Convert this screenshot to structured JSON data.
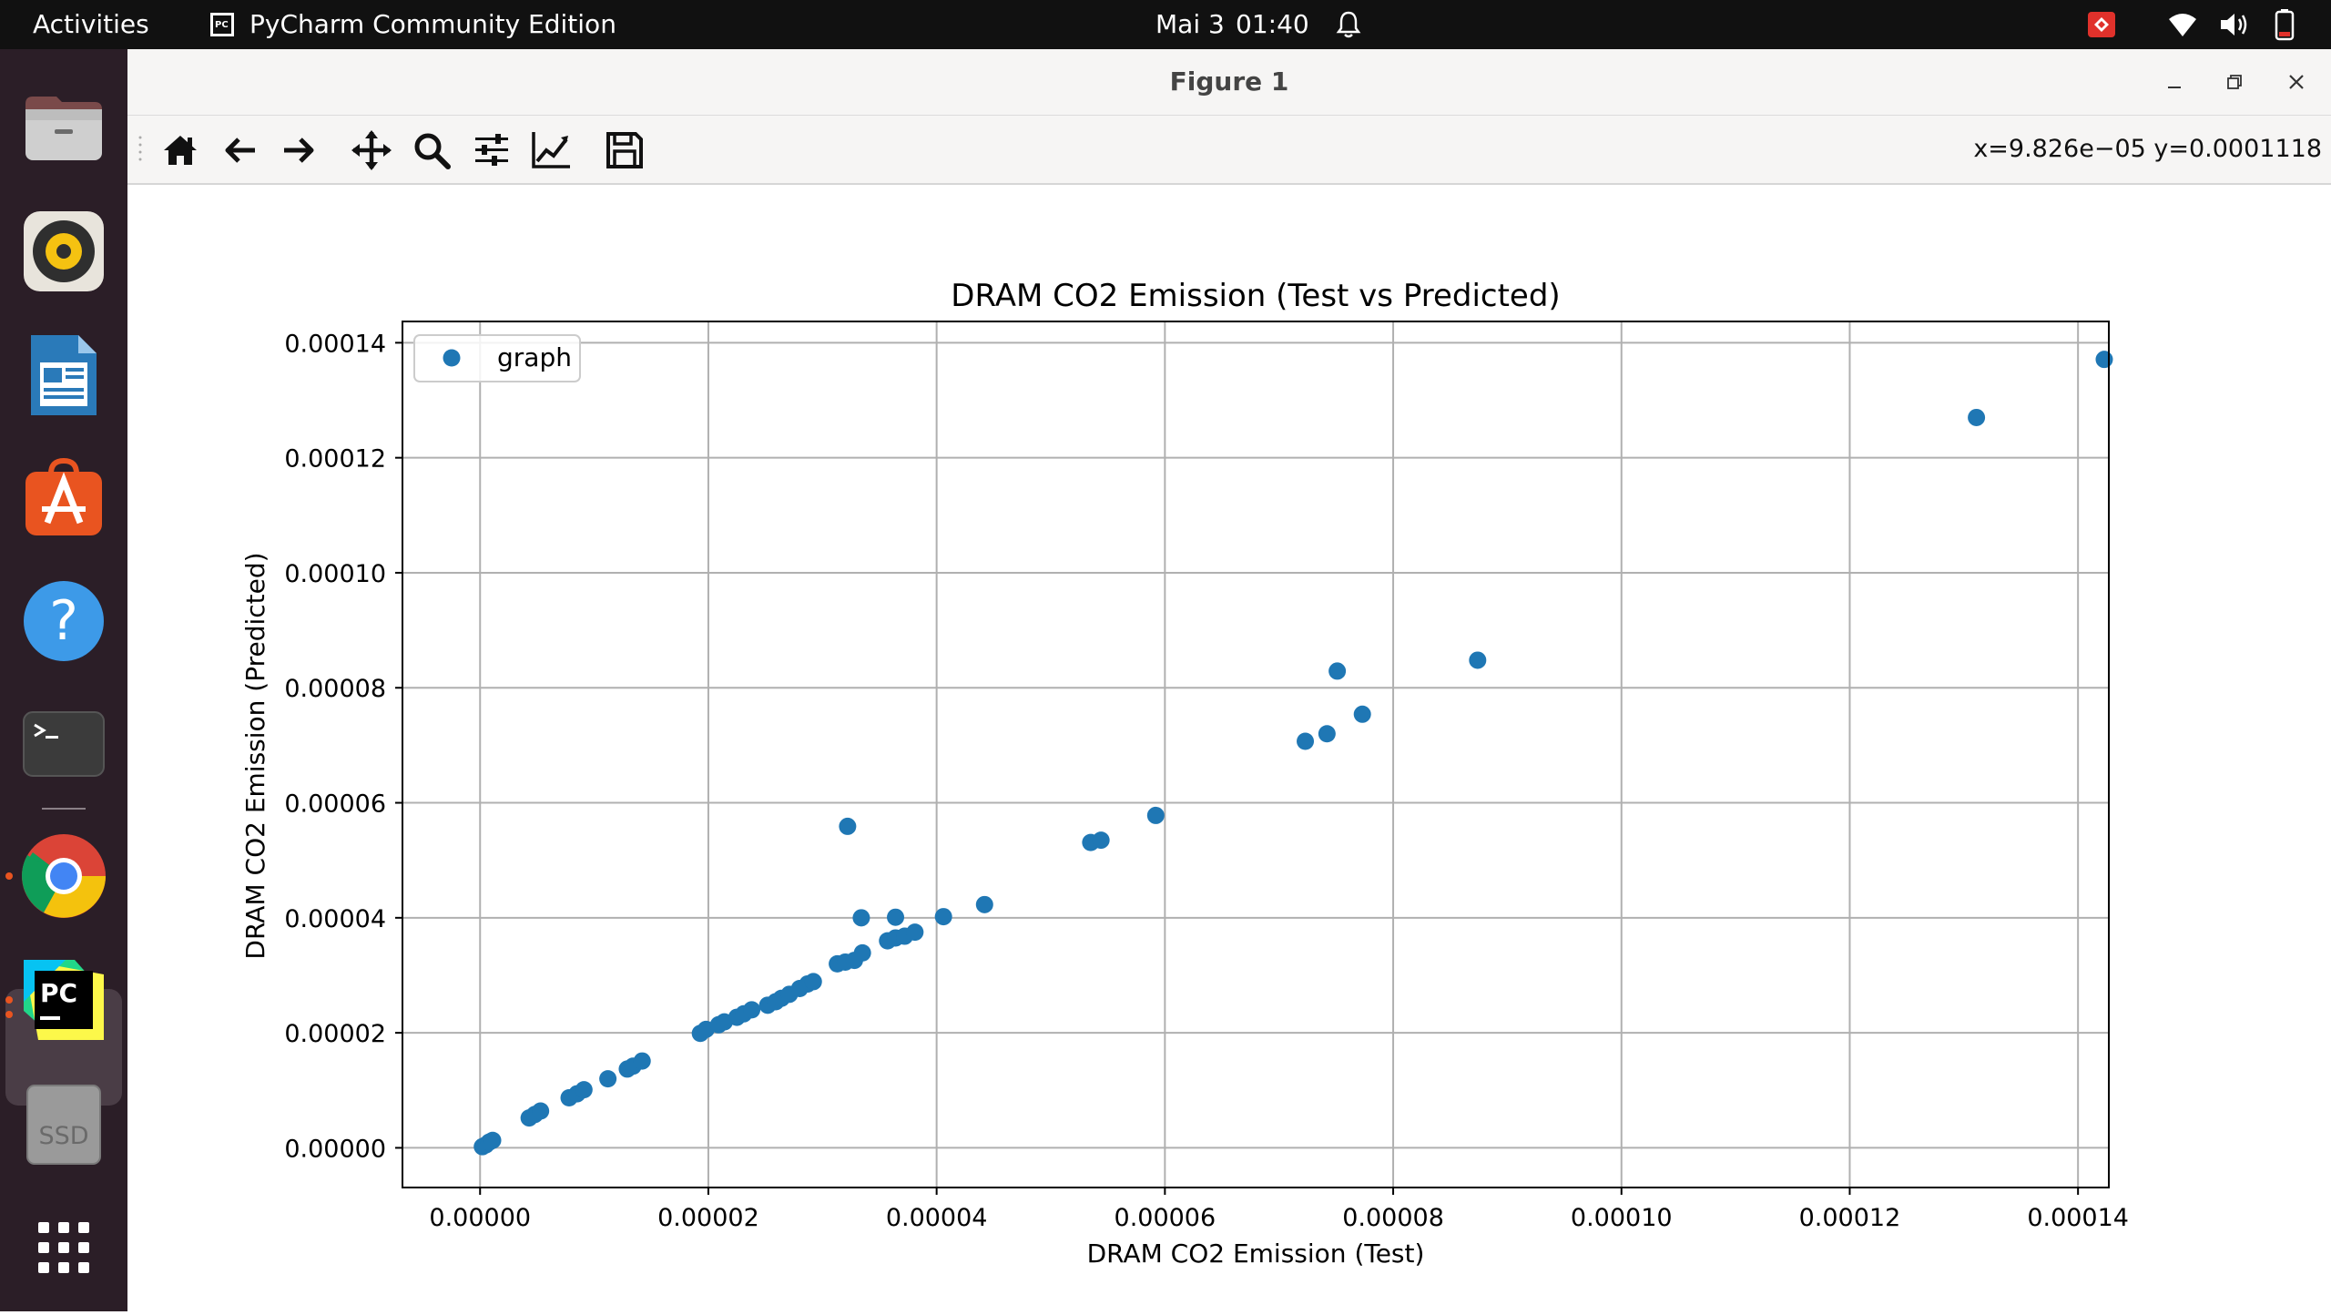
{
  "topbar": {
    "activities": "Activities",
    "app_name": "PyCharm Community Edition",
    "app_icon": "pycharm-small-icon",
    "date": "Mai 3",
    "time": "01:40",
    "status_icons": [
      "bell-icon",
      "remote-desktop-icon",
      "wifi-icon",
      "volume-icon",
      "battery-icon"
    ]
  },
  "dock": {
    "apps": [
      "Files",
      "Rhythmbox",
      "LibreOffice Writer",
      "Ubuntu Software",
      "Help",
      "Terminal",
      "Google Chrome",
      "PyCharm",
      "SSD"
    ],
    "ssd_label": "SSD",
    "show_apps": "show-apps-grid-icon"
  },
  "window": {
    "title": "Figure 1",
    "controls": [
      "minimize-icon",
      "restore-icon",
      "close-icon"
    ]
  },
  "toolbar": {
    "buttons": [
      "home-icon",
      "back-icon",
      "forward-icon",
      "pan-icon",
      "zoom-icon",
      "configure-subplots-icon",
      "edit-axis-icon",
      "save-icon"
    ],
    "coords": "x=9.826e−05 y=0.0001118"
  },
  "chart_data": {
    "type": "scatter",
    "title": "DRAM CO2 Emission (Test vs Predicted)",
    "xlabel": "DRAM CO2 Emission (Test)",
    "ylabel": "DRAM CO2 Emission (Predicted)",
    "xlim": [
      -6.8e-06,
      0.0001427
    ],
    "ylim": [
      -6.9e-06,
      0.0001437
    ],
    "xticks": [
      0,
      2e-05,
      4e-05,
      6e-05,
      8e-05,
      0.0001,
      0.00012,
      0.00014
    ],
    "xtick_labels": [
      "0.00000",
      "0.00002",
      "0.00004",
      "0.00006",
      "0.00008",
      "0.00010",
      "0.00012",
      "0.00014"
    ],
    "yticks": [
      0,
      2e-05,
      4e-05,
      6e-05,
      8e-05,
      0.0001,
      0.00012,
      0.00014
    ],
    "ytick_labels": [
      "0.00000",
      "0.00002",
      "0.00004",
      "0.00006",
      "0.00008",
      "0.00010",
      "0.00012",
      "0.00014"
    ],
    "grid": true,
    "legend_position": "top-left",
    "series": [
      {
        "name": "graph",
        "color": "#1f77b4",
        "points": [
          [
            2e-07,
            2e-07
          ],
          [
            5e-07,
            5e-07
          ],
          [
            8e-07,
            1e-06
          ],
          [
            1.1e-06,
            1.3e-06
          ],
          [
            4.3e-06,
            5.2e-06
          ],
          [
            4.8e-06,
            5.8e-06
          ],
          [
            5.3e-06,
            6.4e-06
          ],
          [
            7.8e-06,
            8.7e-06
          ],
          [
            8.5e-06,
            9.4e-06
          ],
          [
            9.1e-06,
            1.01e-05
          ],
          [
            1.12e-05,
            1.2e-05
          ],
          [
            1.29e-05,
            1.37e-05
          ],
          [
            1.34e-05,
            1.42e-05
          ],
          [
            1.42e-05,
            1.51e-05
          ],
          [
            1.93e-05,
            1.99e-05
          ],
          [
            1.98e-05,
            2.06e-05
          ],
          [
            2.09e-05,
            2.14e-05
          ],
          [
            2.14e-05,
            2.19e-05
          ],
          [
            2.25e-05,
            2.27e-05
          ],
          [
            2.31e-05,
            2.33e-05
          ],
          [
            2.38e-05,
            2.4e-05
          ],
          [
            2.52e-05,
            2.48e-05
          ],
          [
            2.59e-05,
            2.54e-05
          ],
          [
            2.64e-05,
            2.6e-05
          ],
          [
            2.71e-05,
            2.67e-05
          ],
          [
            2.8e-05,
            2.77e-05
          ],
          [
            2.87e-05,
            2.85e-05
          ],
          [
            2.92e-05,
            2.89e-05
          ],
          [
            3.13e-05,
            3.2e-05
          ],
          [
            3.2e-05,
            3.23e-05
          ],
          [
            3.28e-05,
            3.26e-05
          ],
          [
            3.35e-05,
            3.39e-05
          ],
          [
            3.57e-05,
            3.6e-05
          ],
          [
            3.64e-05,
            3.65e-05
          ],
          [
            3.72e-05,
            3.68e-05
          ],
          [
            3.81e-05,
            3.75e-05
          ],
          [
            3.22e-05,
            5.59e-05
          ],
          [
            3.34e-05,
            4e-05
          ],
          [
            3.64e-05,
            4.01e-05
          ],
          [
            4.06e-05,
            4.02e-05
          ],
          [
            4.42e-05,
            4.23e-05
          ],
          [
            5.35e-05,
            5.31e-05
          ],
          [
            5.44e-05,
            5.35e-05
          ],
          [
            5.92e-05,
            5.78e-05
          ],
          [
            7.23e-05,
            7.07e-05
          ],
          [
            7.42e-05,
            7.2e-05
          ],
          [
            7.51e-05,
            8.29e-05
          ],
          [
            7.73e-05,
            7.54e-05
          ],
          [
            8.74e-05,
            8.48e-05
          ],
          [
            0.0001311,
            0.000127
          ],
          [
            0.0001423,
            0.0001371
          ]
        ]
      }
    ]
  }
}
